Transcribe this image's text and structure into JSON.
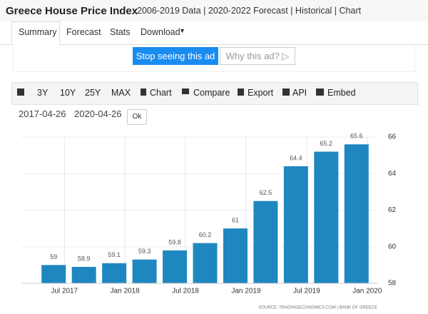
{
  "header": {
    "title": "Greece House Price Index",
    "subtitle": "2006-2019 Data | 2020-2022 Forecast | Historical | Chart"
  },
  "tabs": [
    "Summary",
    "Forecast",
    "Stats",
    "Download"
  ],
  "ad": {
    "stop": "Stop seeing this ad",
    "why": "Why this ad? ▷"
  },
  "toolbar": [
    "3Y",
    "10Y",
    "25Y",
    "MAX",
    "Chart",
    "Compare",
    "Export",
    "API",
    "Embed"
  ],
  "dates": {
    "start": "2017-04-26",
    "end": "2020-04-26",
    "ok": "Ok"
  },
  "chart_data": {
    "type": "bar",
    "categories": [
      "Jul 2017",
      null,
      "Jan 2018",
      null,
      "Jul 2018",
      null,
      "Jan 2019",
      null,
      "Jul 2019",
      null,
      "Jan 2020"
    ],
    "values": [
      59,
      58.9,
      59.1,
      59.3,
      59.8,
      60.2,
      61,
      62.5,
      64.4,
      65.2,
      65.6
    ],
    "color": "#1f87c0",
    "ylim": [
      58,
      66
    ],
    "yticks": [
      58,
      60,
      62,
      64,
      66
    ],
    "grid": true,
    "source": "SOURCE: TRADINGECONOMICS.COM | BANK OF GREECE"
  }
}
